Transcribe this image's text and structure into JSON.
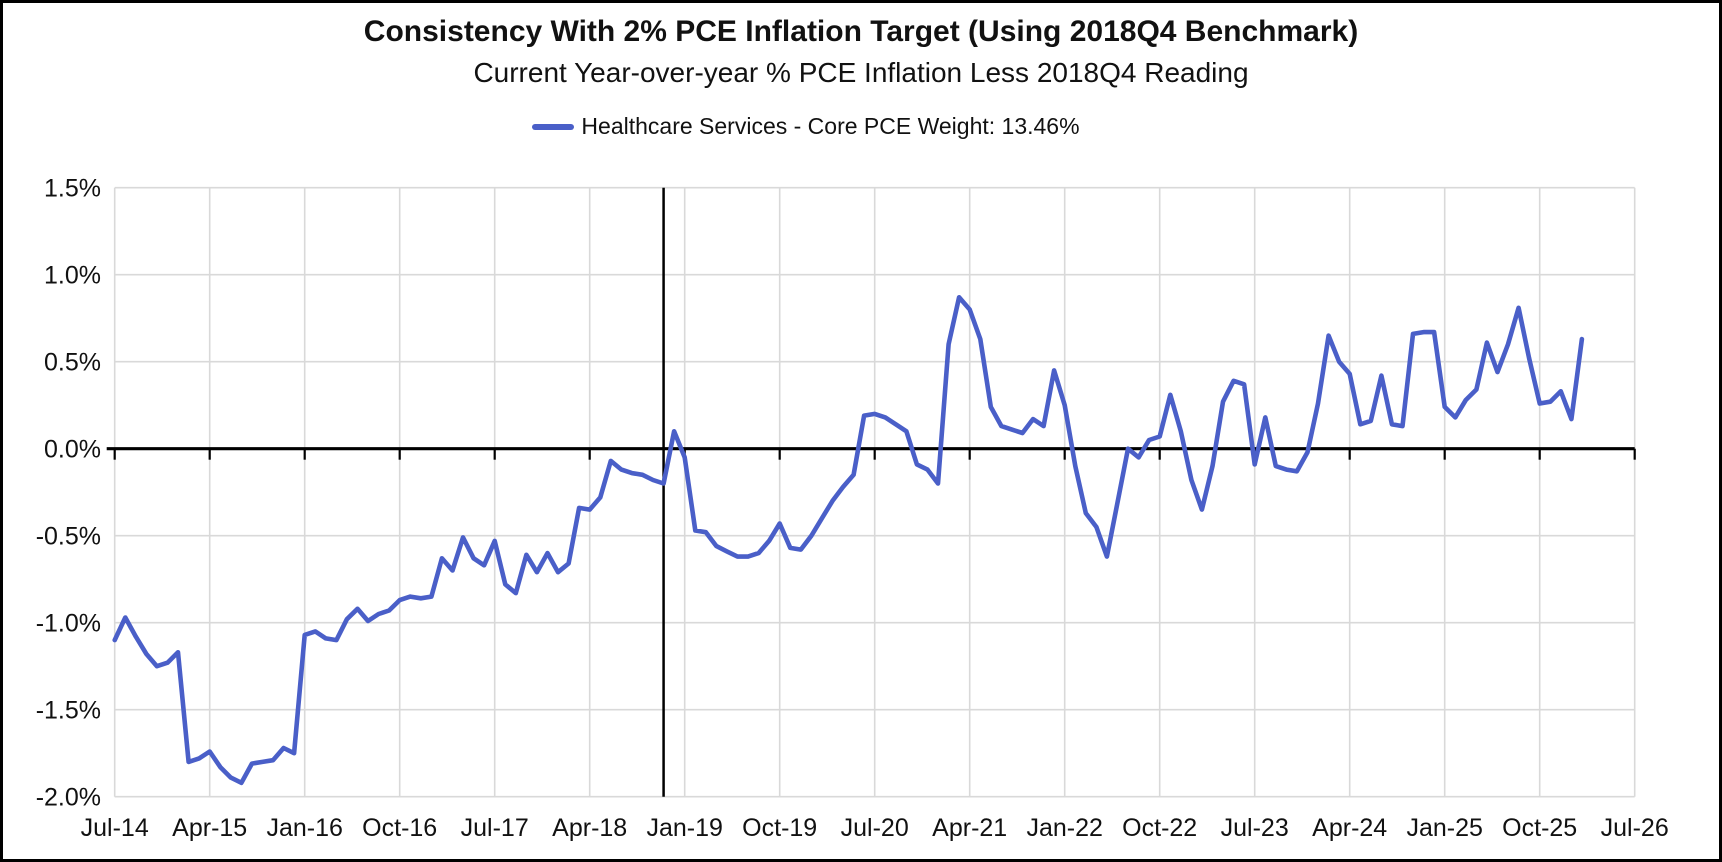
{
  "header": {
    "title": "Consistency With 2% PCE Inflation Target (Using 2018Q4 Benchmark)",
    "subtitle": "Current Year-over-year % PCE Inflation Less 2018Q4 Reading"
  },
  "legend": {
    "series_label": "Healthcare Services - Core PCE Weight: 13.46%",
    "marker": "line-swatch"
  },
  "colors": {
    "series": "#4a5fc8",
    "gridline": "#d9d9d9",
    "axis": "#000000",
    "background": "#ffffff"
  },
  "chart_data": {
    "type": "line",
    "title": "Consistency With 2% PCE Inflation Target (Using 2018Q4 Benchmark)",
    "subtitle": "Current Year-over-year % PCE Inflation Less 2018Q4 Reading",
    "series_name": "Healthcare Services - Core PCE Weight: 13.46%",
    "unit": "%",
    "grid": true,
    "legend_position": "top",
    "ylim": [
      -2.0,
      1.5
    ],
    "y_ticks": [
      1.5,
      1.0,
      0.5,
      0.0,
      -0.5,
      -1.0,
      -1.5,
      -2.0
    ],
    "y_tick_labels": [
      "1.5%",
      "1.0%",
      "0.5%",
      "0.0%",
      "-0.5%",
      "-1.0%",
      "-1.5%",
      "-2.0%"
    ],
    "x_tick_labels": [
      "Jul-14",
      "Apr-15",
      "Jan-16",
      "Oct-16",
      "Jul-17",
      "Apr-18",
      "Jan-19",
      "Oct-19",
      "Jul-20",
      "Apr-21",
      "Jan-22",
      "Oct-22",
      "Jul-23",
      "Apr-24",
      "Jan-25",
      "Oct-25",
      "Jul-26"
    ],
    "x_tick_every": 9,
    "x_axis_total_slots": 144,
    "benchmark_vline_index": 52,
    "categories": [
      "Jul-14",
      "Aug-14",
      "Sep-14",
      "Oct-14",
      "Nov-14",
      "Dec-14",
      "Jan-15",
      "Feb-15",
      "Mar-15",
      "Apr-15",
      "May-15",
      "Jun-15",
      "Jul-15",
      "Aug-15",
      "Sep-15",
      "Oct-15",
      "Nov-15",
      "Dec-15",
      "Jan-16",
      "Feb-16",
      "Mar-16",
      "Apr-16",
      "May-16",
      "Jun-16",
      "Jul-16",
      "Aug-16",
      "Sep-16",
      "Oct-16",
      "Nov-16",
      "Dec-16",
      "Jan-17",
      "Feb-17",
      "Mar-17",
      "Apr-17",
      "May-17",
      "Jun-17",
      "Jul-17",
      "Aug-17",
      "Sep-17",
      "Oct-17",
      "Nov-17",
      "Dec-17",
      "Jan-18",
      "Feb-18",
      "Mar-18",
      "Apr-18",
      "May-18",
      "Jun-18",
      "Jul-18",
      "Aug-18",
      "Sep-18",
      "Oct-18",
      "Nov-18",
      "Dec-18",
      "Jan-19",
      "Feb-19",
      "Mar-19",
      "Apr-19",
      "May-19",
      "Jun-19",
      "Jul-19",
      "Aug-19",
      "Sep-19",
      "Oct-19",
      "Nov-19",
      "Dec-19",
      "Jan-20",
      "Feb-20",
      "Mar-20",
      "Apr-20",
      "May-20",
      "Jun-20",
      "Jul-20",
      "Aug-20",
      "Sep-20",
      "Oct-20",
      "Nov-20",
      "Dec-20",
      "Jan-21",
      "Feb-21",
      "Mar-21",
      "Apr-21",
      "May-21",
      "Jun-21",
      "Jul-21",
      "Aug-21",
      "Sep-21",
      "Oct-21",
      "Nov-21",
      "Dec-21",
      "Jan-22",
      "Feb-22",
      "Mar-22",
      "Apr-22",
      "May-22",
      "Jun-22",
      "Jul-22",
      "Aug-22",
      "Sep-22",
      "Oct-22",
      "Nov-22",
      "Dec-22",
      "Jan-23",
      "Feb-23",
      "Mar-23",
      "Apr-23",
      "May-23",
      "Jun-23",
      "Jul-23",
      "Aug-23",
      "Sep-23",
      "Oct-23",
      "Nov-23",
      "Dec-23",
      "Jan-24",
      "Feb-24",
      "Mar-24",
      "Apr-24",
      "May-24",
      "Jun-24",
      "Jul-24",
      "Aug-24",
      "Sep-24",
      "Oct-24",
      "Nov-24",
      "Dec-24",
      "Jan-25",
      "Feb-25",
      "Mar-25",
      "Apr-25",
      "May-25",
      "Jun-25",
      "Jul-25",
      "Aug-25",
      "Sep-25",
      "Oct-25",
      "Nov-25",
      "Dec-25",
      "Jan-26",
      "Feb-26"
    ],
    "values": [
      -1.1,
      -0.97,
      -1.08,
      -1.18,
      -1.25,
      -1.23,
      -1.17,
      -1.8,
      -1.78,
      -1.74,
      -1.83,
      -1.89,
      -1.92,
      -1.81,
      -1.8,
      -1.79,
      -1.72,
      -1.75,
      -1.07,
      -1.05,
      -1.09,
      -1.1,
      -0.98,
      -0.92,
      -0.99,
      -0.95,
      -0.93,
      -0.87,
      -0.85,
      -0.86,
      -0.85,
      -0.63,
      -0.7,
      -0.51,
      -0.63,
      -0.67,
      -0.53,
      -0.78,
      -0.83,
      -0.61,
      -0.71,
      -0.6,
      -0.71,
      -0.66,
      -0.34,
      -0.35,
      -0.28,
      -0.07,
      -0.12,
      -0.14,
      -0.15,
      -0.18,
      -0.2,
      0.1,
      -0.05,
      -0.47,
      -0.48,
      -0.56,
      -0.59,
      -0.62,
      -0.62,
      -0.6,
      -0.53,
      -0.43,
      -0.57,
      -0.58,
      -0.5,
      -0.4,
      -0.3,
      -0.22,
      -0.15,
      0.19,
      0.2,
      0.18,
      0.14,
      0.1,
      -0.09,
      -0.12,
      -0.2,
      0.6,
      0.87,
      0.8,
      0.63,
      0.24,
      0.13,
      0.11,
      0.09,
      0.17,
      0.13,
      0.45,
      0.25,
      -0.1,
      -0.37,
      -0.45,
      -0.62,
      -0.31,
      0.0,
      -0.05,
      0.05,
      0.07,
      0.31,
      0.1,
      -0.18,
      -0.35,
      -0.1,
      0.27,
      0.39,
      0.37,
      -0.09,
      0.18,
      -0.1,
      -0.12,
      -0.13,
      -0.02,
      0.26,
      0.65,
      0.5,
      0.43,
      0.14,
      0.16,
      0.42,
      0.14,
      0.13,
      0.66,
      0.67,
      0.67,
      0.24,
      0.18,
      0.28,
      0.34,
      0.61,
      0.44,
      0.6,
      0.81,
      0.52,
      0.26,
      0.27,
      0.33,
      0.17,
      0.63
    ]
  }
}
